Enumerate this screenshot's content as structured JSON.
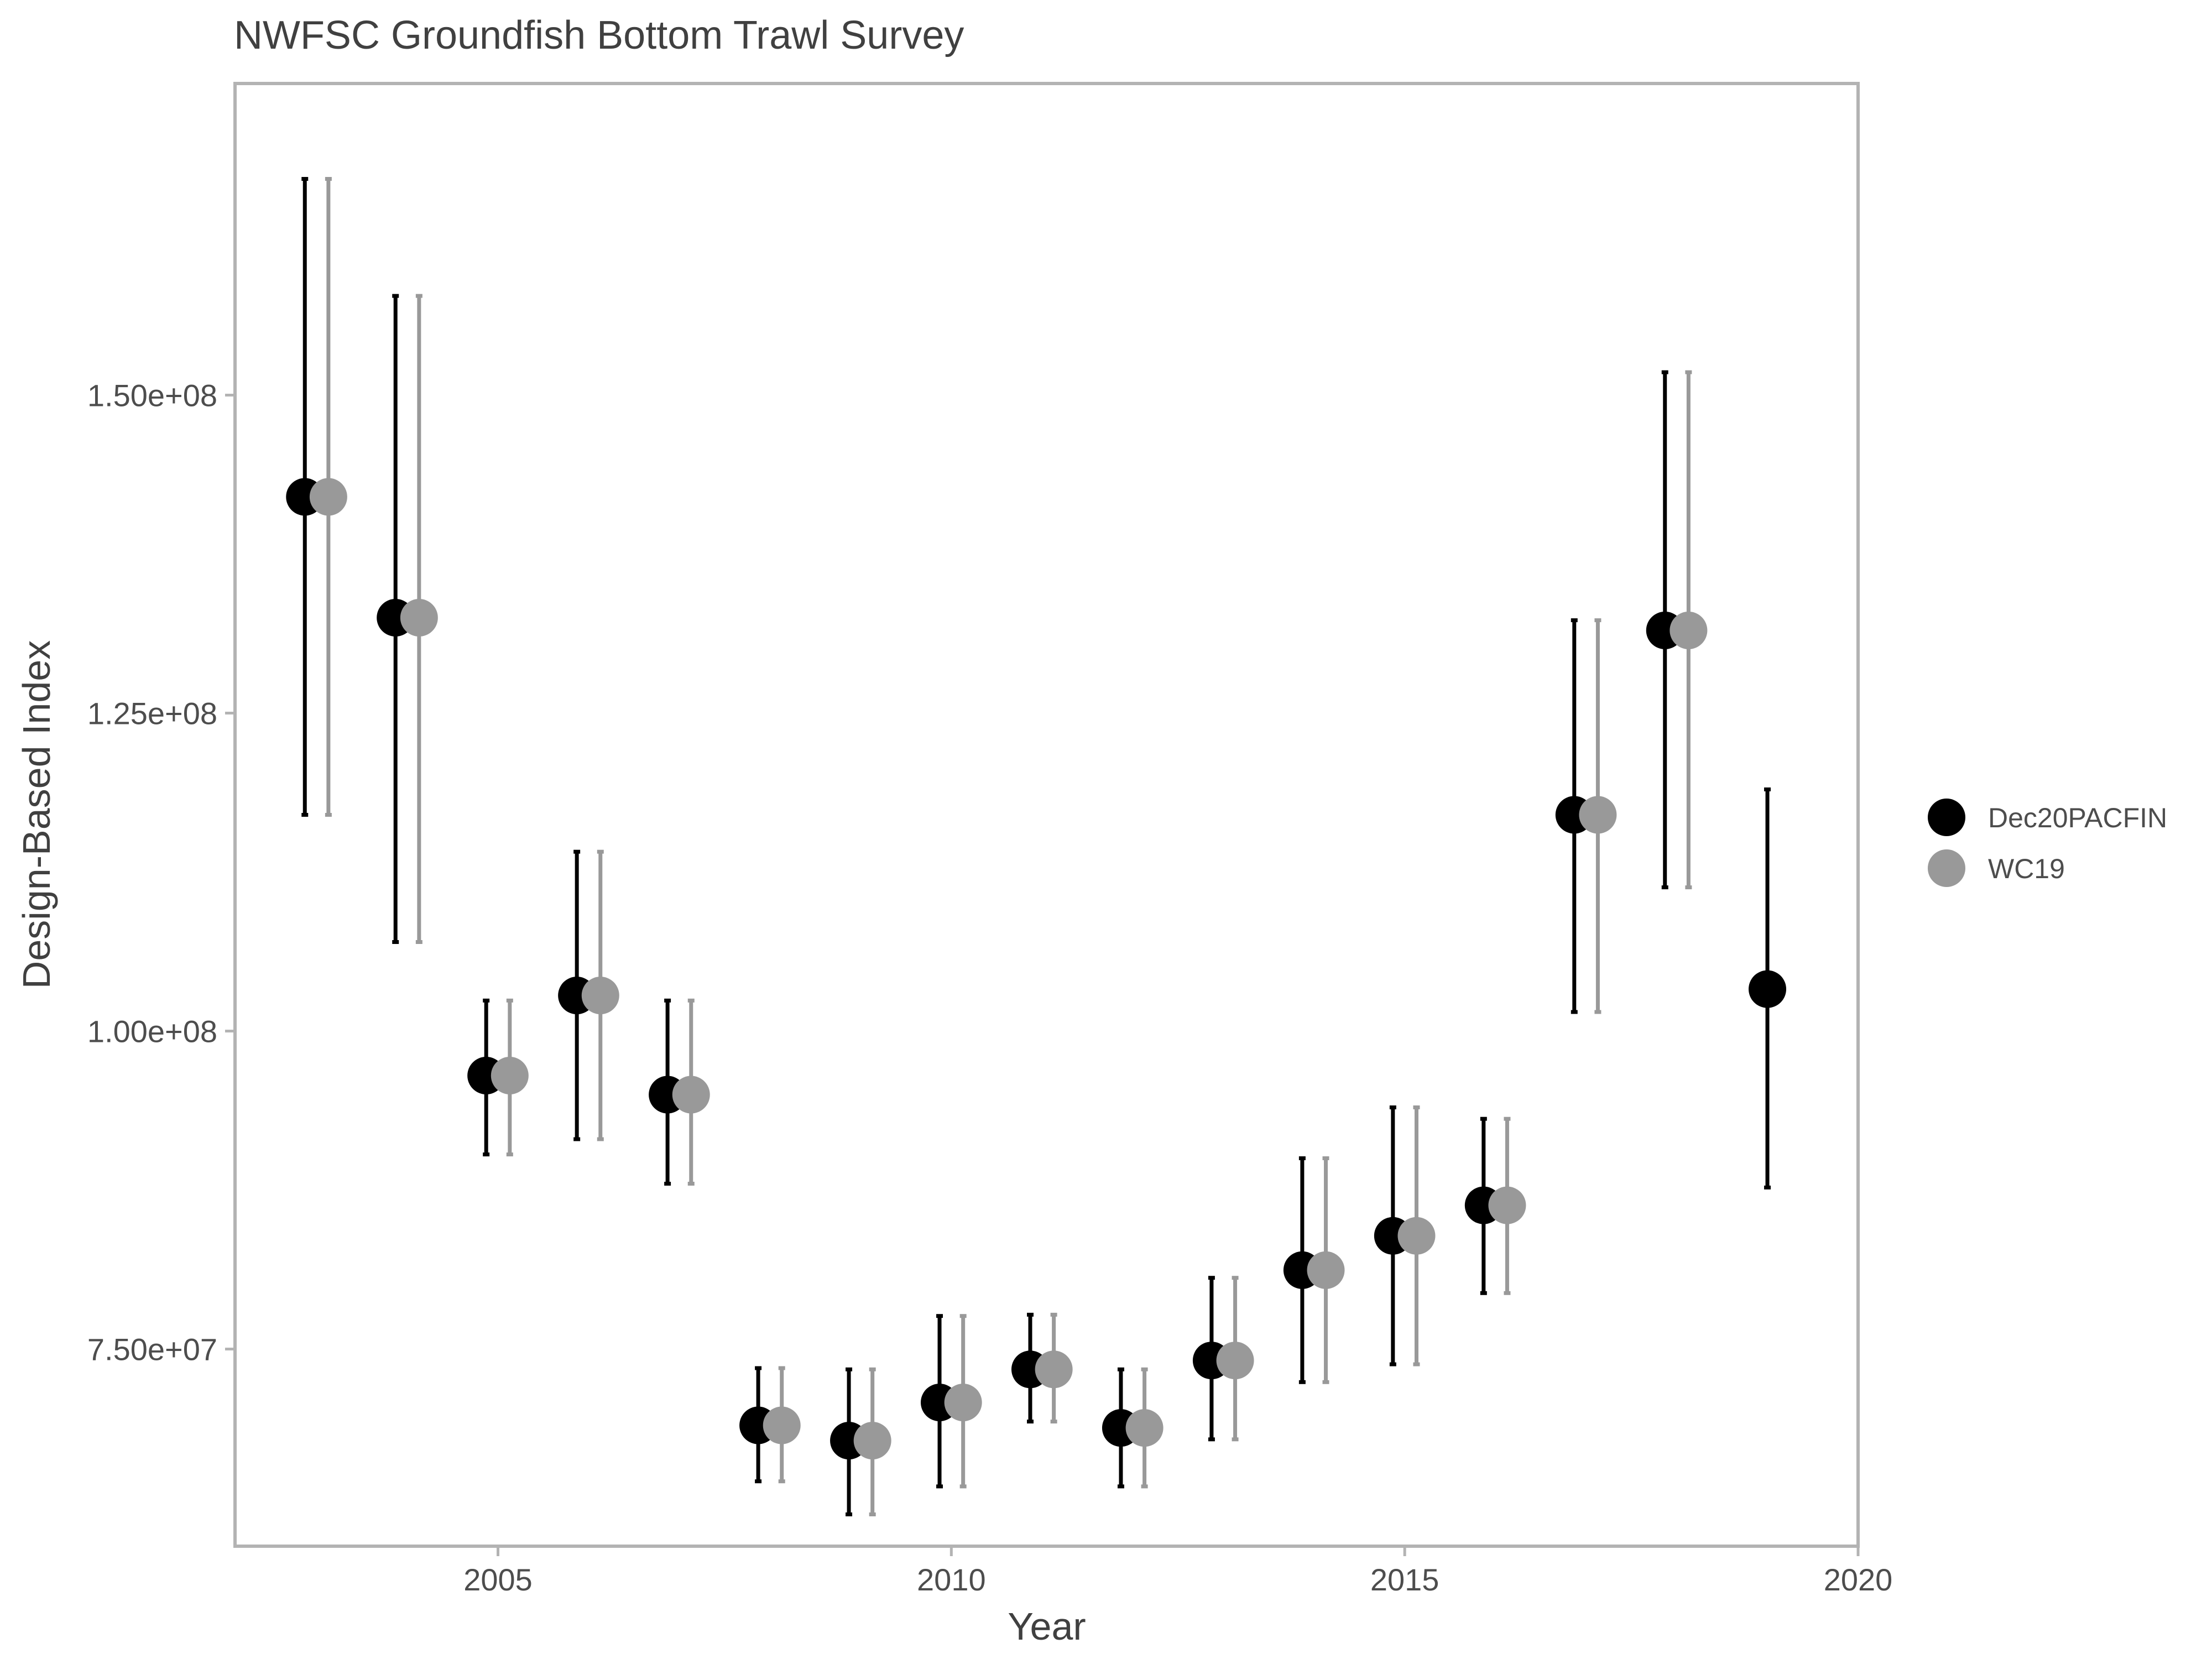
{
  "chart_data": {
    "type": "scatter",
    "title": "NWFSC Groundfish Bottom Trawl Survey",
    "xlabel": "Year",
    "ylabel": "Design-Based Index",
    "xlim": [
      2002.1,
      2020.0
    ],
    "ylim": [
      59500000,
      174500000
    ],
    "x_ticks": [
      2005,
      2010,
      2015,
      2020
    ],
    "x_tick_labels": [
      "2005",
      "2010",
      "2015",
      "2020"
    ],
    "y_ticks": [
      75000000,
      100000000,
      125000000,
      150000000
    ],
    "y_tick_labels": [
      "7.50e+07",
      "1.00e+08",
      "1.25e+08",
      "1.50e+08"
    ],
    "grid": false,
    "legend_position": "right",
    "series": [
      {
        "name": "Dec20PACFIN",
        "color": "#000000",
        "x": [
          2003,
          2004,
          2005,
          2006,
          2007,
          2008,
          2009,
          2010,
          2011,
          2012,
          2013,
          2014,
          2015,
          2016,
          2017,
          2018,
          2019
        ],
        "y": [
          142000000,
          132500000,
          96500000,
          102800000,
          95000000,
          69000000,
          67800000,
          70800000,
          73400000,
          68800000,
          74100000,
          81200000,
          83900000,
          86300000,
          117000000,
          131500000,
          103300000
        ],
        "lower": [
          117000000,
          107000000,
          90300000,
          91500000,
          88000000,
          64600000,
          62000000,
          64200000,
          69300000,
          64200000,
          67900000,
          72400000,
          73800000,
          79400000,
          101500000,
          111300000,
          87700000
        ],
        "upper": [
          167000000,
          157800000,
          102400000,
          114100000,
          102400000,
          73500000,
          73400000,
          77600000,
          77700000,
          73400000,
          80600000,
          90000000,
          94000000,
          93100000,
          132300000,
          151800000,
          119000000
        ]
      },
      {
        "name": "WC19",
        "color": "#999999",
        "x": [
          2003,
          2004,
          2005,
          2006,
          2007,
          2008,
          2009,
          2010,
          2011,
          2012,
          2013,
          2014,
          2015,
          2016,
          2017,
          2018
        ],
        "y": [
          142000000,
          132500000,
          96500000,
          102800000,
          95000000,
          69000000,
          67800000,
          70800000,
          73400000,
          68800000,
          74100000,
          81200000,
          83900000,
          86300000,
          117000000,
          131500000
        ],
        "lower": [
          117000000,
          107000000,
          90300000,
          91500000,
          88000000,
          64600000,
          62000000,
          64200000,
          69300000,
          64200000,
          67900000,
          72400000,
          73800000,
          79400000,
          101500000,
          111300000
        ],
        "upper": [
          167000000,
          157800000,
          102400000,
          114100000,
          102400000,
          73500000,
          73400000,
          77600000,
          77700000,
          73400000,
          80600000,
          90000000,
          94000000,
          93100000,
          132300000,
          151800000
        ]
      }
    ]
  }
}
